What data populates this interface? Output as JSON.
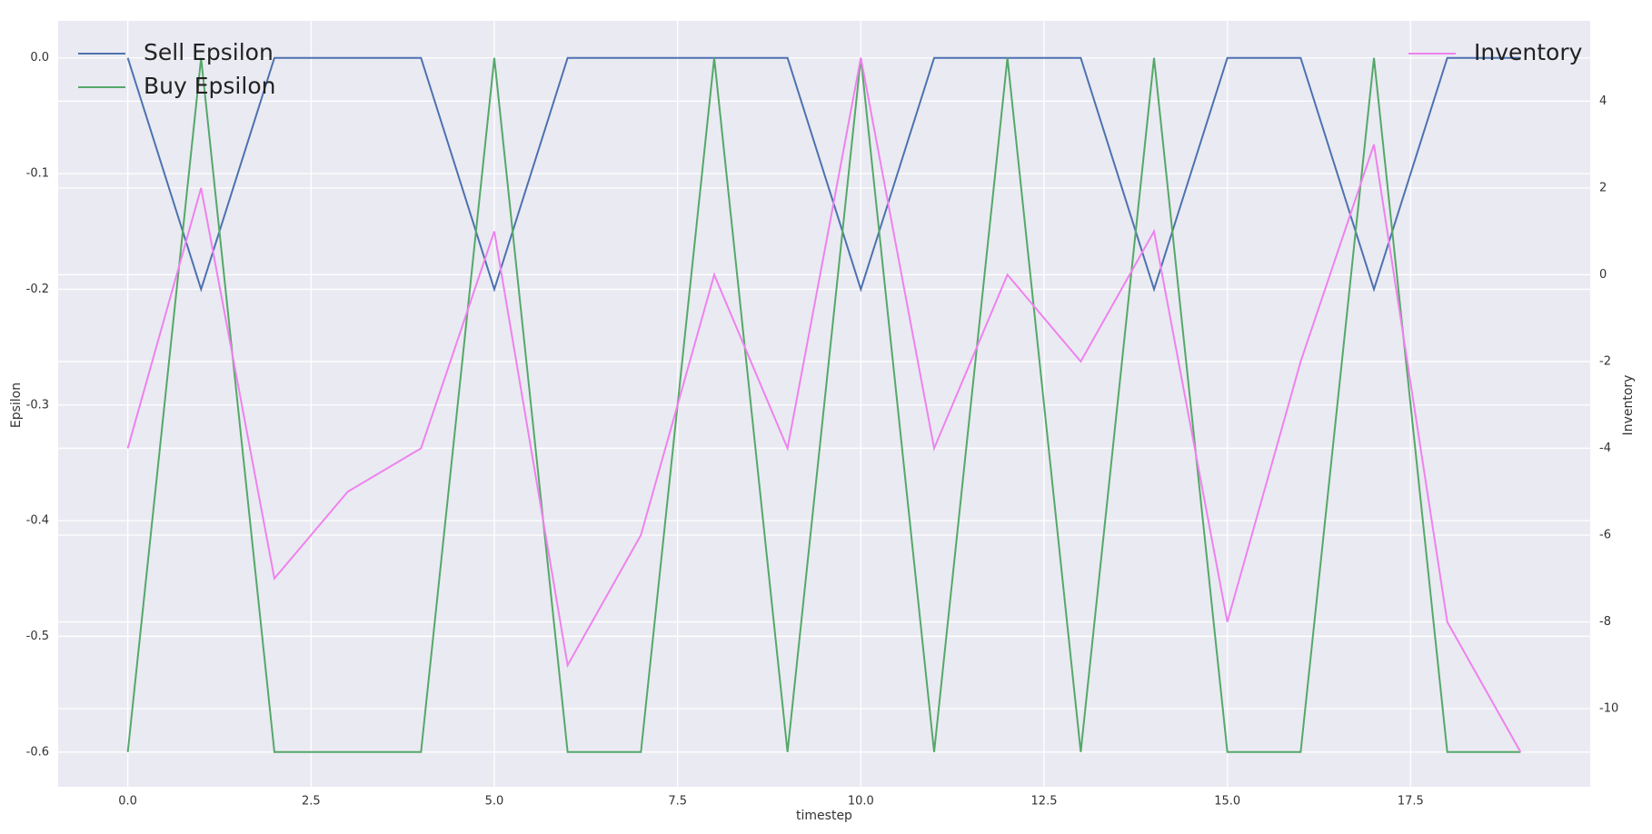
{
  "chart_data": {
    "type": "line",
    "xlabel": "timestep",
    "ylabel": "Epsilon",
    "y2label": "Inventory",
    "x": [
      0,
      1,
      2,
      3,
      4,
      5,
      6,
      7,
      8,
      9,
      10,
      11,
      12,
      13,
      14,
      15,
      16,
      17,
      18,
      19
    ],
    "series": [
      {
        "name": "Sell Epsilon",
        "color": "#4c72b0",
        "values": [
          0,
          -0.2,
          0,
          0,
          0,
          -0.2,
          0,
          0,
          0,
          0,
          -0.2,
          0,
          0,
          0,
          -0.2,
          0,
          0,
          -0.2,
          0,
          0
        ]
      },
      {
        "name": "Buy Epsilon",
        "color": "#55a868",
        "values": [
          -0.6,
          0,
          -0.6,
          -0.6,
          -0.6,
          0,
          -0.6,
          -0.6,
          0,
          -0.6,
          0,
          -0.6,
          0,
          -0.6,
          0,
          -0.6,
          -0.6,
          0,
          -0.6,
          -0.6
        ]
      },
      {
        "name": "Inventory",
        "color": "#ee82ee",
        "axis": "y2",
        "values": [
          -4,
          2,
          -7,
          -5,
          -4,
          1,
          -9,
          -6,
          0,
          -4,
          5,
          -4,
          0,
          -2,
          1,
          -8,
          -2,
          3,
          -8,
          -11
        ]
      }
    ],
    "xlim": [
      -0.95,
      19.95
    ],
    "xticks": [
      {
        "value": 0,
        "label": "0.0"
      },
      2.5,
      {
        "value": 5,
        "label": "5.0"
      },
      7.5,
      {
        "value": 10,
        "label": "10.0"
      },
      12.5,
      {
        "value": 15,
        "label": "15.0"
      },
      17.5
    ],
    "ylim": [
      -0.63,
      0.032
    ],
    "yticks": [
      {
        "value": 0,
        "label": "0.0"
      },
      -0.1,
      -0.2,
      -0.3,
      -0.4,
      -0.5,
      -0.6
    ],
    "y2lim": [
      -11.8,
      5.85
    ],
    "y2ticks": [
      4,
      2,
      0,
      -2,
      -4,
      -6,
      -8,
      -10
    ],
    "grid": true,
    "legend": "upper left",
    "legend2": "upper right"
  }
}
